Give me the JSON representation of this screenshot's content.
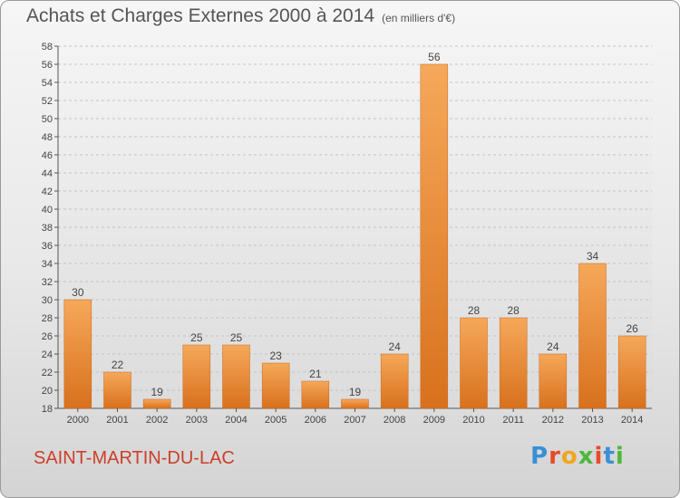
{
  "header": {
    "title": "Achats et Charges Externes 2000 à 2014",
    "subtitle": "(en milliers d'€)"
  },
  "footer": {
    "place": "SAINT-MARTIN-DU-LAC",
    "logo": "Proxiti"
  },
  "colors": {
    "bar_light": "#f6a85a",
    "bar_dark": "#d8711d",
    "place_text": "#cc3f2a",
    "logo_letters": [
      "#3a8fd6",
      "#e84a2a",
      "#f0a61c",
      "#4db83a",
      "#e84a2a",
      "#3a8fd6",
      "#4db83a"
    ]
  },
  "chart_data": {
    "type": "bar",
    "title": "Achats et Charges Externes 2000 à 2014",
    "categories": [
      "2000",
      "2001",
      "2002",
      "2003",
      "2004",
      "2005",
      "2006",
      "2007",
      "2008",
      "2009",
      "2010",
      "2011",
      "2012",
      "2013",
      "2014"
    ],
    "values": [
      30,
      22,
      19,
      25,
      25,
      23,
      21,
      19,
      24,
      56,
      28,
      28,
      24,
      34,
      26
    ],
    "ylim": [
      18,
      58
    ],
    "ytick_step": 2,
    "grid": true,
    "xlabel": "",
    "ylabel": ""
  }
}
